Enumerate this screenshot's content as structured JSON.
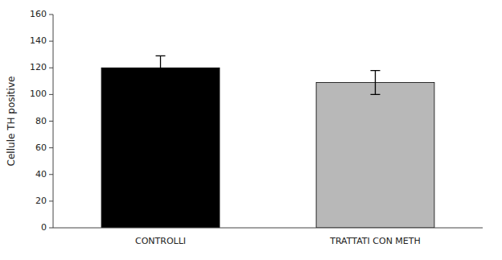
{
  "chart_data": {
    "type": "bar",
    "categories": [
      "CONTROLLI",
      "TRATTATI CON METH"
    ],
    "values": [
      120,
      109
    ],
    "errors": [
      9,
      9
    ],
    "colors": [
      "#000000",
      "#b8b8b8"
    ],
    "ylabel": "Cellule TH positive",
    "ylim": [
      0,
      160
    ],
    "yticks": [
      0,
      20,
      40,
      60,
      80,
      100,
      120,
      140,
      160
    ],
    "grid": false
  }
}
